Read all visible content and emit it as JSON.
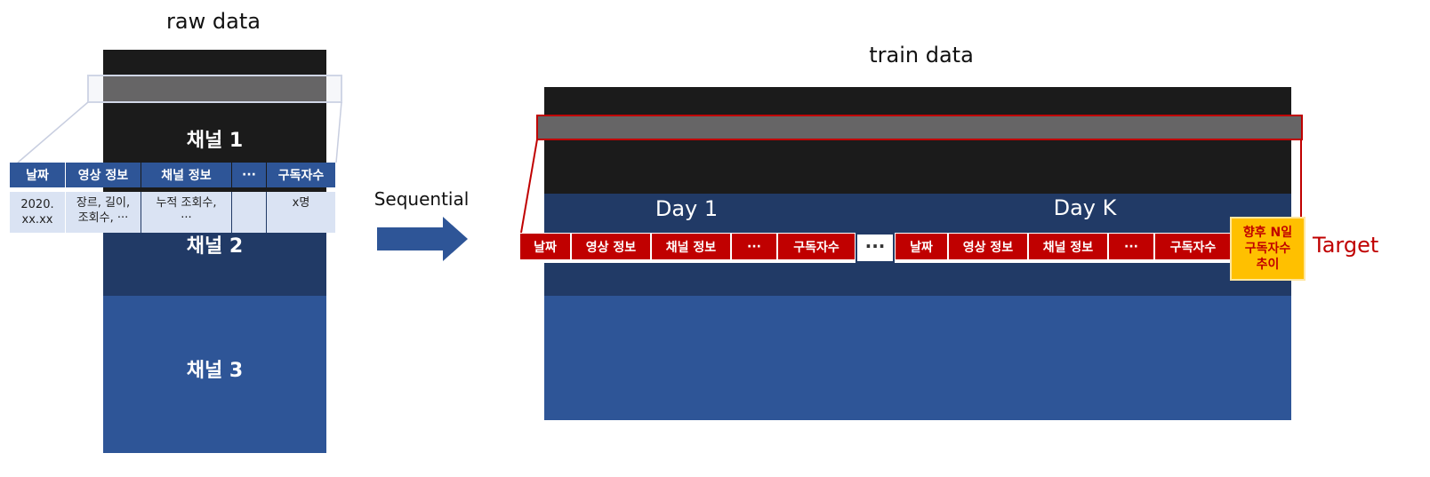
{
  "raw": {
    "title": "raw data",
    "channels": [
      "채널 1",
      "채널 2",
      "채널 3"
    ],
    "table": {
      "headers": [
        "날짜",
        "영상 정보",
        "채널 정보",
        "···",
        "구독자수"
      ],
      "row": [
        "2020.\nxx.xx",
        "장르, 길이,\n조회수, ···",
        "누적 조회수,\n···",
        "",
        "x명"
      ]
    }
  },
  "arrow": {
    "label": "Sequential"
  },
  "train": {
    "title": "train data",
    "day_labels": [
      "Day 1",
      "Day K"
    ],
    "headers": [
      "날짜",
      "영상 정보",
      "채널 정보",
      "···",
      "구독자수"
    ],
    "ellipsis": "···",
    "target_box": "향후 N일\n구독자수\n추이",
    "target_label": "Target"
  },
  "colors": {
    "dark": "#1b1b1b",
    "navy": "#213a66",
    "blue": "#2e5597",
    "header_red": "#c00000",
    "target_yellow": "#ffc000"
  }
}
